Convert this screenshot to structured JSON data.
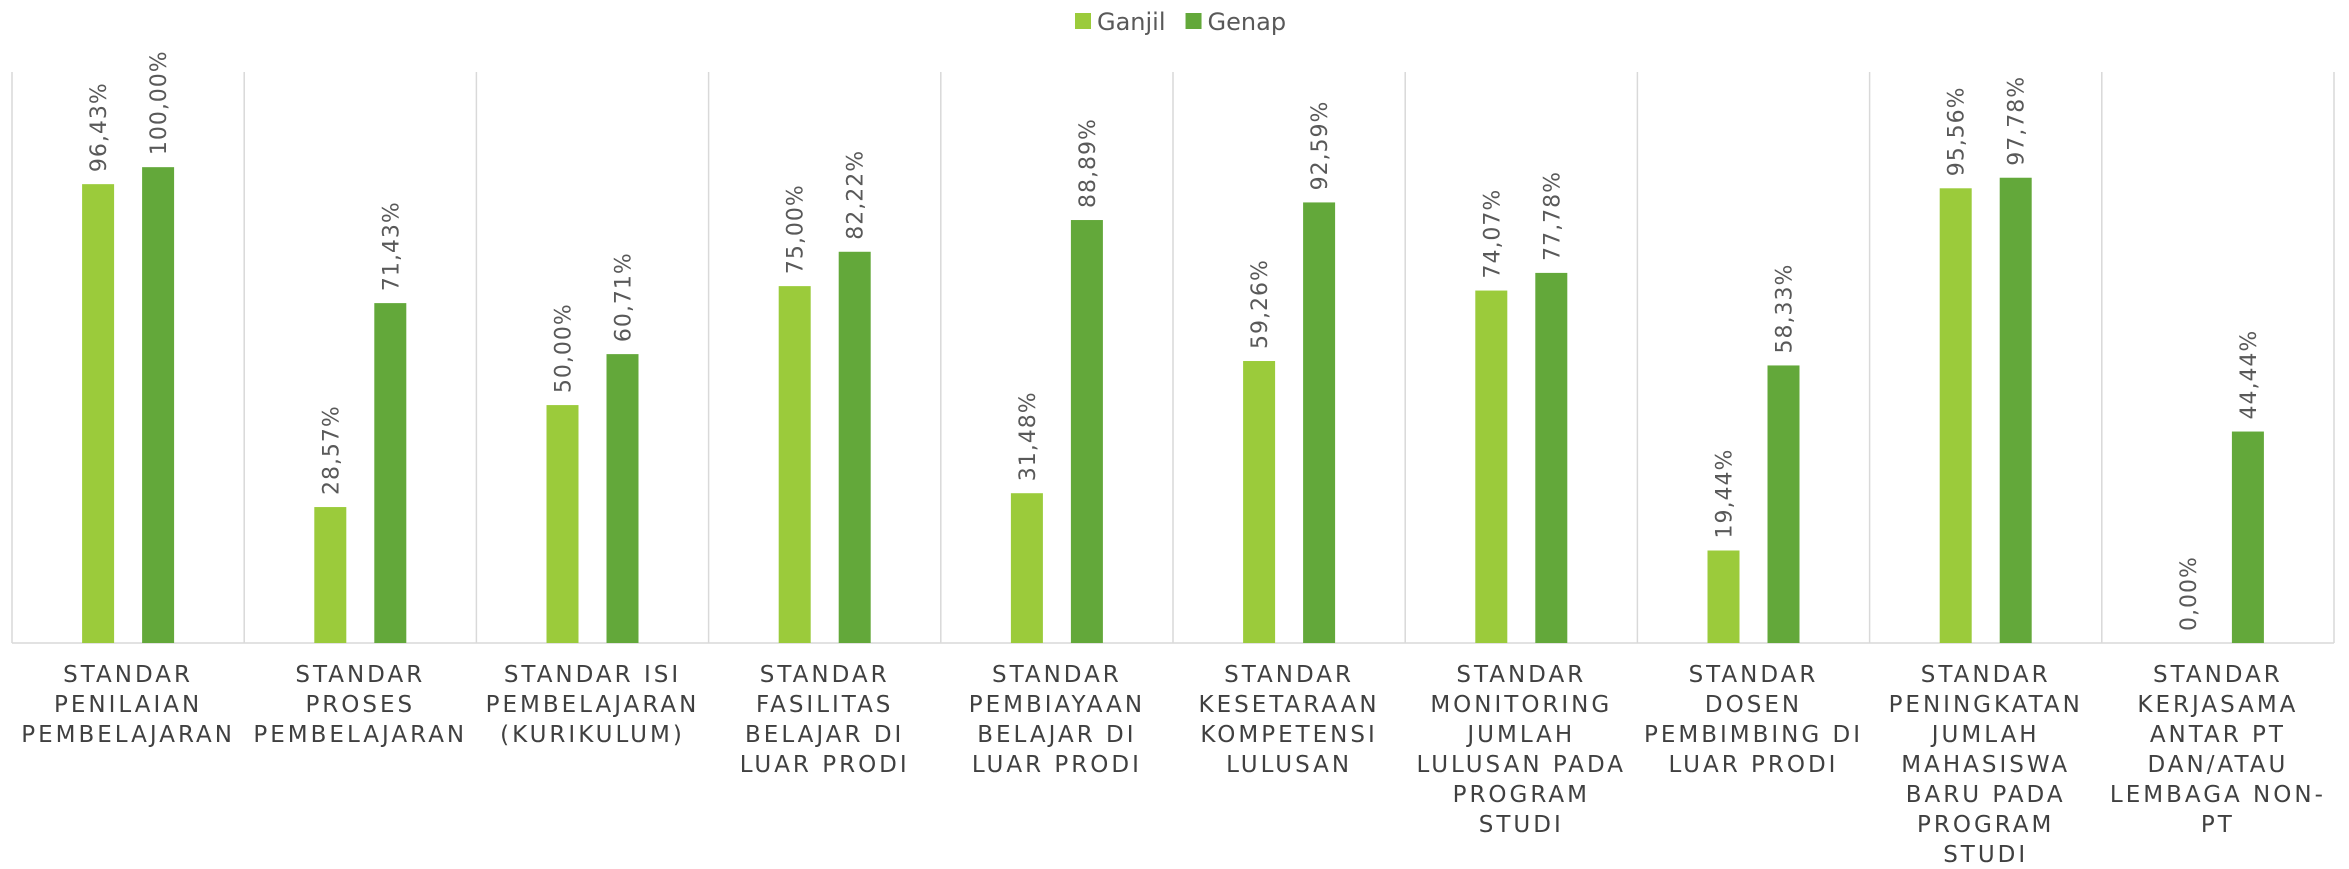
{
  "chart_data": {
    "type": "bar",
    "categories": [
      "STANDAR PENILAIAN PEMBELAJARAN",
      "STANDAR PROSES PEMBELAJARAN",
      "STANDAR ISI PEMBELAJARAN (KURIKULUM)",
      "STANDAR FASILITAS BELAJAR DI LUAR PRODI",
      "STANDAR PEMBIAYAAN BELAJAR DI LUAR PRODI",
      "STANDAR KESETARAAN KOMPETENSI LULUSAN",
      "STANDAR MONITORING JUMLAH LULUSAN PADA PROGRAM STUDI",
      "STANDAR DOSEN PEMBIMBING DI LUAR PRODI",
      "STANDAR PENINGKATAN JUMLAH MAHASISWA BARU PADA PROGRAM STUDI",
      "STANDAR KERJASAMA ANTAR PT DAN/ATAU LEMBAGA NON-PT"
    ],
    "series": [
      {
        "name": "Ganjil",
        "color": "#9bcb3b",
        "values": [
          96.43,
          28.57,
          50.0,
          75.0,
          31.48,
          59.26,
          74.07,
          19.44,
          95.56,
          0.0
        ],
        "value_labels": [
          "96,43%",
          "28,57%",
          "50,00%",
          "75,00%",
          "31,48%",
          "59,26%",
          "74,07%",
          "19,44%",
          "95,56%",
          "0,00%"
        ]
      },
      {
        "name": "Genap",
        "color": "#63a83a",
        "values": [
          100.0,
          71.43,
          60.71,
          82.22,
          88.89,
          92.59,
          77.78,
          58.33,
          97.78,
          44.44
        ],
        "value_labels": [
          "100,00%",
          "71,43%",
          "60,71%",
          "82,22%",
          "88,89%",
          "92,59%",
          "77,78%",
          "58,33%",
          "97,78%",
          "44,44%"
        ]
      }
    ],
    "ylim": [
      0,
      120
    ],
    "legend": "top"
  }
}
